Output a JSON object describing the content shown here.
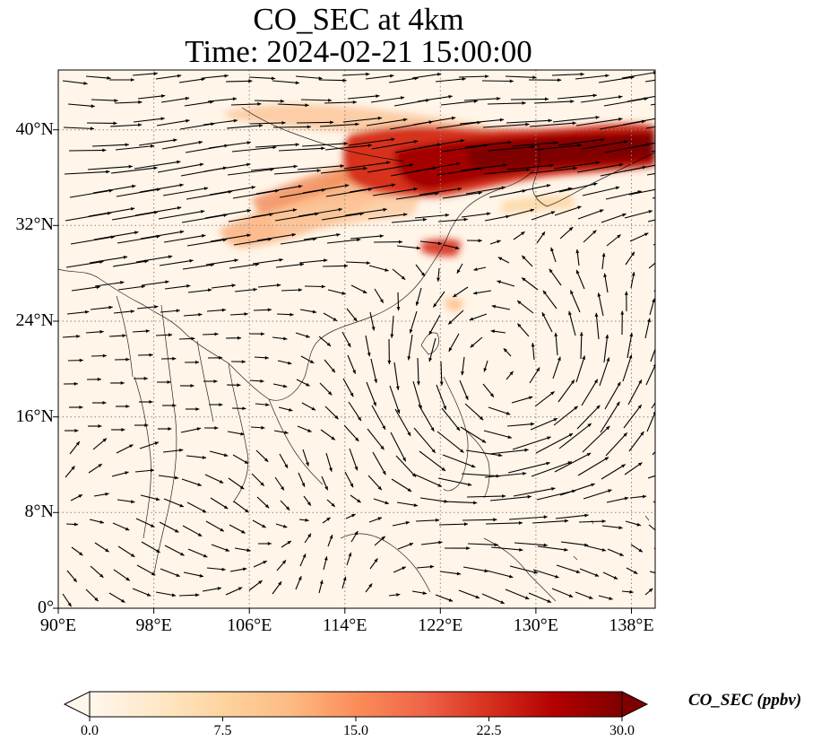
{
  "title": "CO_SEC at 4km",
  "subtitle": "Time: 2024-02-21 15:00:00",
  "map": {
    "lon_range": [
      90,
      140
    ],
    "lat_range": [
      0,
      45
    ],
    "lat_ticks": [
      {
        "value": 0,
        "label": "0°"
      },
      {
        "value": 8,
        "label": "8°N"
      },
      {
        "value": 16,
        "label": "16°N"
      },
      {
        "value": 24,
        "label": "24°N"
      },
      {
        "value": 32,
        "label": "32°N"
      },
      {
        "value": 40,
        "label": "40°N"
      }
    ],
    "lon_ticks": [
      {
        "value": 90,
        "label": "90°E"
      },
      {
        "value": 98,
        "label": "98°E"
      },
      {
        "value": 106,
        "label": "106°E"
      },
      {
        "value": 114,
        "label": "114°E"
      },
      {
        "value": 122,
        "label": "122°E"
      },
      {
        "value": 130,
        "label": "130°E"
      },
      {
        "value": 138,
        "label": "138°E"
      }
    ],
    "gridlines": "dotted",
    "layers": [
      "CO_SEC concentration field",
      "wind vectors",
      "coastlines"
    ]
  },
  "colorbar": {
    "label": "CO_SEC (ppbv)",
    "colormap": "OrRd",
    "range": [
      0.0,
      30.0
    ],
    "ticks": [
      "0.0",
      "7.5",
      "15.0",
      "22.5",
      "30.0"
    ],
    "tick_values": [
      0,
      7.5,
      15,
      22.5,
      30
    ],
    "extend": "both",
    "colors": [
      "#fff7ec",
      "#fee8c8",
      "#fdd49e",
      "#fdbb84",
      "#fc8d59",
      "#ef6548",
      "#d7301f",
      "#b30000",
      "#7f0000"
    ]
  }
}
